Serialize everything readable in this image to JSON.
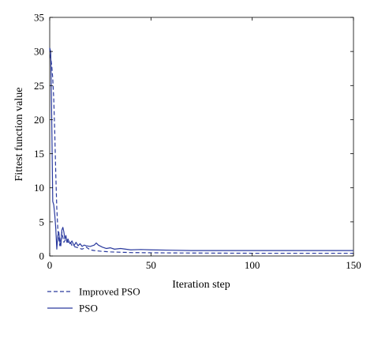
{
  "chart_data": {
    "type": "line",
    "title": "",
    "xlabel": "Iteration step",
    "ylabel": "Fittest function value",
    "xlim": [
      0,
      150
    ],
    "ylim": [
      0,
      35
    ],
    "xticks": [
      0,
      50,
      100,
      150
    ],
    "yticks": [
      0,
      5,
      10,
      15,
      20,
      25,
      30,
      35
    ],
    "grid": false,
    "legend_position": "bottom-left-outside",
    "series": [
      {
        "name": "Improved PSO",
        "style": "dashed",
        "color": "#2a3a9e",
        "x": [
          0,
          0.5,
          1,
          1.5,
          2,
          2.5,
          3,
          3.5,
          4,
          4.5,
          5,
          6,
          7,
          8,
          9,
          10,
          11,
          12,
          13,
          14,
          15,
          16,
          18,
          20,
          22,
          25,
          30,
          40,
          60,
          100,
          150
        ],
        "y": [
          30.5,
          29,
          28,
          26,
          23,
          18,
          12,
          7,
          4,
          2.5,
          1.5,
          3.5,
          2,
          2.5,
          2,
          2.2,
          1.5,
          1.4,
          1.3,
          1.2,
          1.1,
          1.0,
          1.3,
          0.9,
          0.8,
          0.7,
          0.6,
          0.5,
          0.45,
          0.4,
          0.4
        ]
      },
      {
        "name": "PSO",
        "style": "solid",
        "color": "#2a3a9e",
        "x": [
          0,
          0.5,
          1,
          1.5,
          2,
          2.5,
          3,
          3.5,
          4,
          4.5,
          5,
          5.5,
          6,
          6.5,
          7,
          7.5,
          8,
          8.5,
          9,
          10,
          11,
          12,
          13,
          14,
          15,
          16,
          17,
          18,
          20,
          22,
          23,
          24,
          26,
          28,
          30,
          32,
          35,
          40,
          45,
          50,
          60,
          70,
          80,
          90,
          100,
          120,
          150
        ],
        "y": [
          30.5,
          30,
          20,
          8,
          7.5,
          6,
          4,
          1,
          3,
          3.5,
          2,
          1.5,
          3.8,
          4.2,
          3.5,
          2.5,
          3,
          2,
          2.5,
          1.8,
          2.2,
          1.5,
          2,
          1.5,
          1.8,
          1.4,
          1.6,
          1.5,
          1.4,
          1.6,
          1.9,
          1.6,
          1.3,
          1.1,
          1.2,
          1.0,
          1.1,
          0.9,
          0.95,
          0.9,
          0.85,
          0.8,
          0.8,
          0.8,
          0.8,
          0.8,
          0.8
        ]
      }
    ]
  }
}
